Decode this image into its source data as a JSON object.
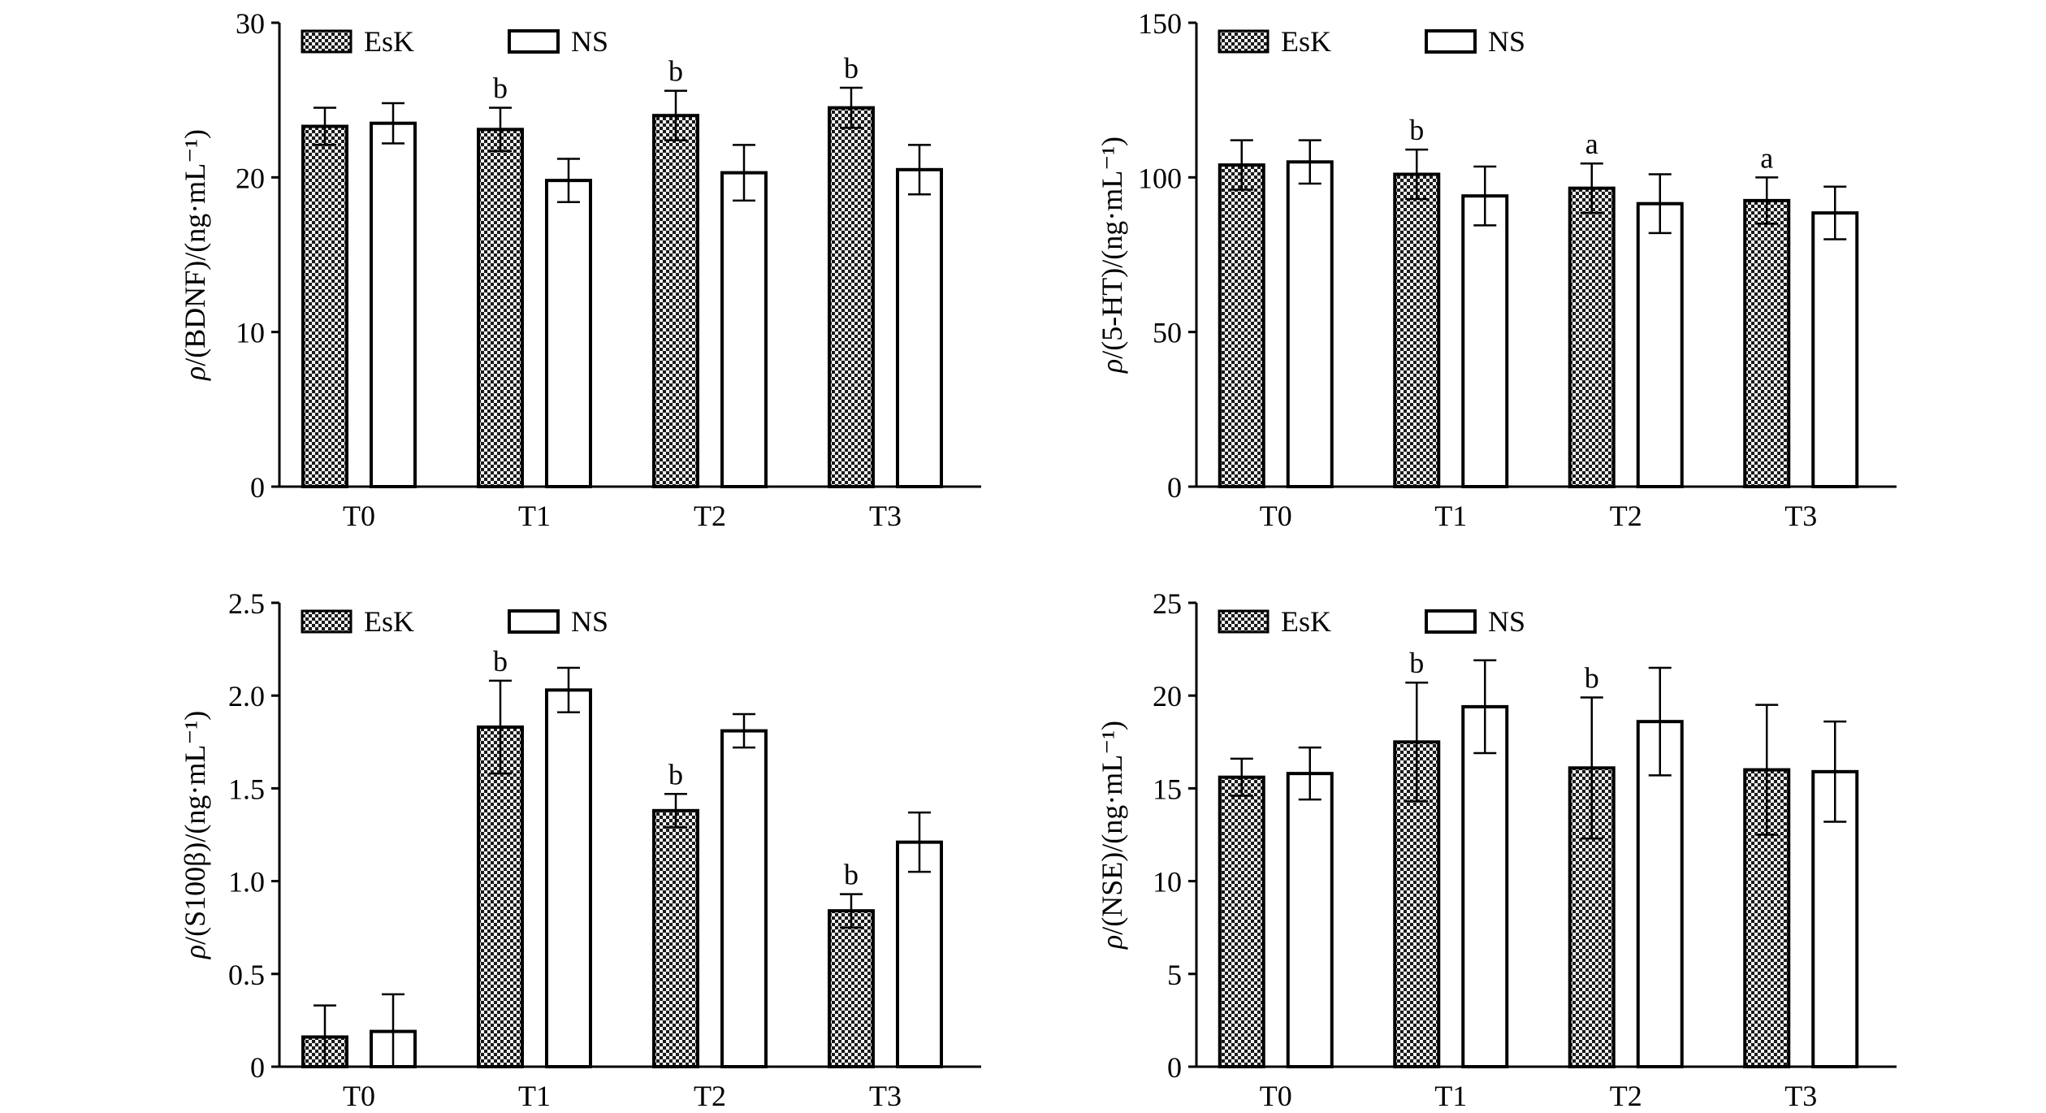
{
  "legend": {
    "esk": "EsK",
    "ns": "NS"
  },
  "colors": {
    "stroke": "#000000",
    "ns_fill": "#ffffff",
    "esk_dark": "#1a1a1a",
    "esk_light": "#f2f2f2"
  },
  "chart_data": [
    {
      "id": "bdnf",
      "type": "bar",
      "categories": [
        "T0",
        "T1",
        "T2",
        "T3"
      ],
      "ylabel_prefix": "ρ",
      "ylabel": "/(BDNF)/(ng·mL⁻¹)",
      "ylim": [
        0,
        30
      ],
      "yticks": [
        "0",
        "10",
        "20",
        "30"
      ],
      "legend_position": "top-left",
      "series": [
        {
          "name": "EsK",
          "values": [
            23.3,
            23.1,
            24.0,
            24.5
          ],
          "errors": [
            1.2,
            1.4,
            1.6,
            1.3
          ]
        },
        {
          "name": "NS",
          "values": [
            23.5,
            19.8,
            20.3,
            20.5
          ],
          "errors": [
            1.3,
            1.4,
            1.8,
            1.6
          ]
        }
      ],
      "annotations": [
        "",
        "b",
        "b",
        "b"
      ]
    },
    {
      "id": "5ht",
      "type": "bar",
      "categories": [
        "T0",
        "T1",
        "T2",
        "T3"
      ],
      "ylabel_prefix": "ρ",
      "ylabel": "/(5-HT)/(ng·mL⁻¹)",
      "ylim": [
        0,
        150
      ],
      "yticks": [
        "0",
        "50",
        "100",
        "150"
      ],
      "legend_position": "top-left",
      "series": [
        {
          "name": "EsK",
          "values": [
            104,
            101,
            96.5,
            92.5
          ],
          "errors": [
            8,
            8,
            8,
            7.5
          ]
        },
        {
          "name": "NS",
          "values": [
            105,
            94,
            91.5,
            88.5
          ],
          "errors": [
            7,
            9.5,
            9.5,
            8.5
          ]
        }
      ],
      "annotations": [
        "",
        "b",
        "a",
        "a"
      ]
    },
    {
      "id": "s100b",
      "type": "bar",
      "categories": [
        "T0",
        "T1",
        "T2",
        "T3"
      ],
      "ylabel_prefix": "ρ",
      "ylabel": "/(S100β)/(ng·mL⁻¹)",
      "ylim": [
        0,
        2.5
      ],
      "yticks": [
        "0",
        "0.5",
        "1.0",
        "1.5",
        "2.0",
        "2.5"
      ],
      "legend_position": "top-left",
      "series": [
        {
          "name": "EsK",
          "values": [
            0.16,
            1.83,
            1.38,
            0.84
          ],
          "errors": [
            0.17,
            0.25,
            0.09,
            0.09
          ]
        },
        {
          "name": "NS",
          "values": [
            0.19,
            2.03,
            1.81,
            1.21
          ],
          "errors": [
            0.2,
            0.12,
            0.09,
            0.16
          ]
        }
      ],
      "annotations": [
        "",
        "b",
        "b",
        "b"
      ]
    },
    {
      "id": "nse",
      "type": "bar",
      "categories": [
        "T0",
        "T1",
        "T2",
        "T3"
      ],
      "ylabel_prefix": "ρ",
      "ylabel": "/(NSE)/(ng·mL⁻¹)",
      "ylim": [
        0,
        25
      ],
      "yticks": [
        "0",
        "5",
        "10",
        "15",
        "20",
        "25"
      ],
      "legend_position": "top-left",
      "series": [
        {
          "name": "EsK",
          "values": [
            15.6,
            17.5,
            16.1,
            16.0
          ],
          "errors": [
            1.0,
            3.2,
            3.8,
            3.5
          ]
        },
        {
          "name": "NS",
          "values": [
            15.8,
            19.4,
            18.6,
            15.9
          ],
          "errors": [
            1.4,
            2.5,
            2.9,
            2.7
          ]
        }
      ],
      "annotations": [
        "",
        "b",
        "b",
        ""
      ]
    }
  ]
}
